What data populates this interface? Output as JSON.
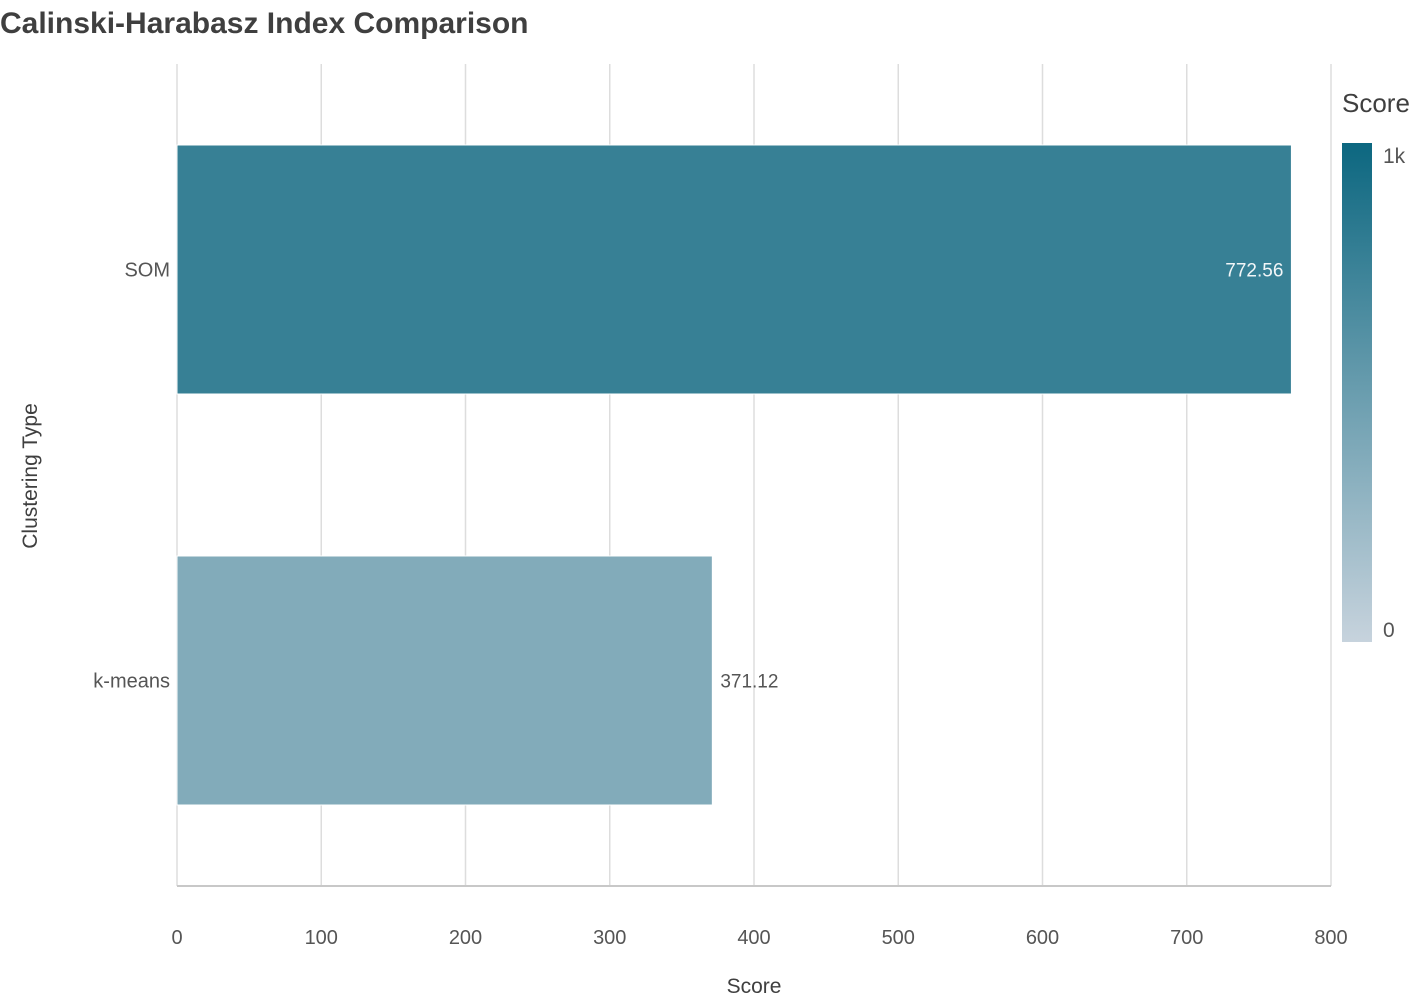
{
  "chart_data": {
    "type": "bar",
    "orientation": "horizontal",
    "title": "Calinski-Harabasz Index Comparison",
    "xlabel": "Score",
    "ylabel": "Clustering Type",
    "xlim": [
      0,
      800
    ],
    "x_ticks": [
      0,
      100,
      200,
      300,
      400,
      500,
      600,
      700,
      800
    ],
    "categories": [
      "SOM",
      "k-means"
    ],
    "values": [
      772.56,
      371.12
    ],
    "data_labels": [
      "772.56",
      "371.12"
    ],
    "grid": true,
    "legend": {
      "title": "Score",
      "type": "colorscale",
      "range": [
        0,
        1000
      ],
      "tick_labels": [
        "1k",
        "0"
      ],
      "placement": "right",
      "color_low": "#c7d3dd",
      "color_high": "#0c6780"
    },
    "colors": {
      "label_inside": "#f2f6f8",
      "label_outside": "#555555"
    }
  }
}
